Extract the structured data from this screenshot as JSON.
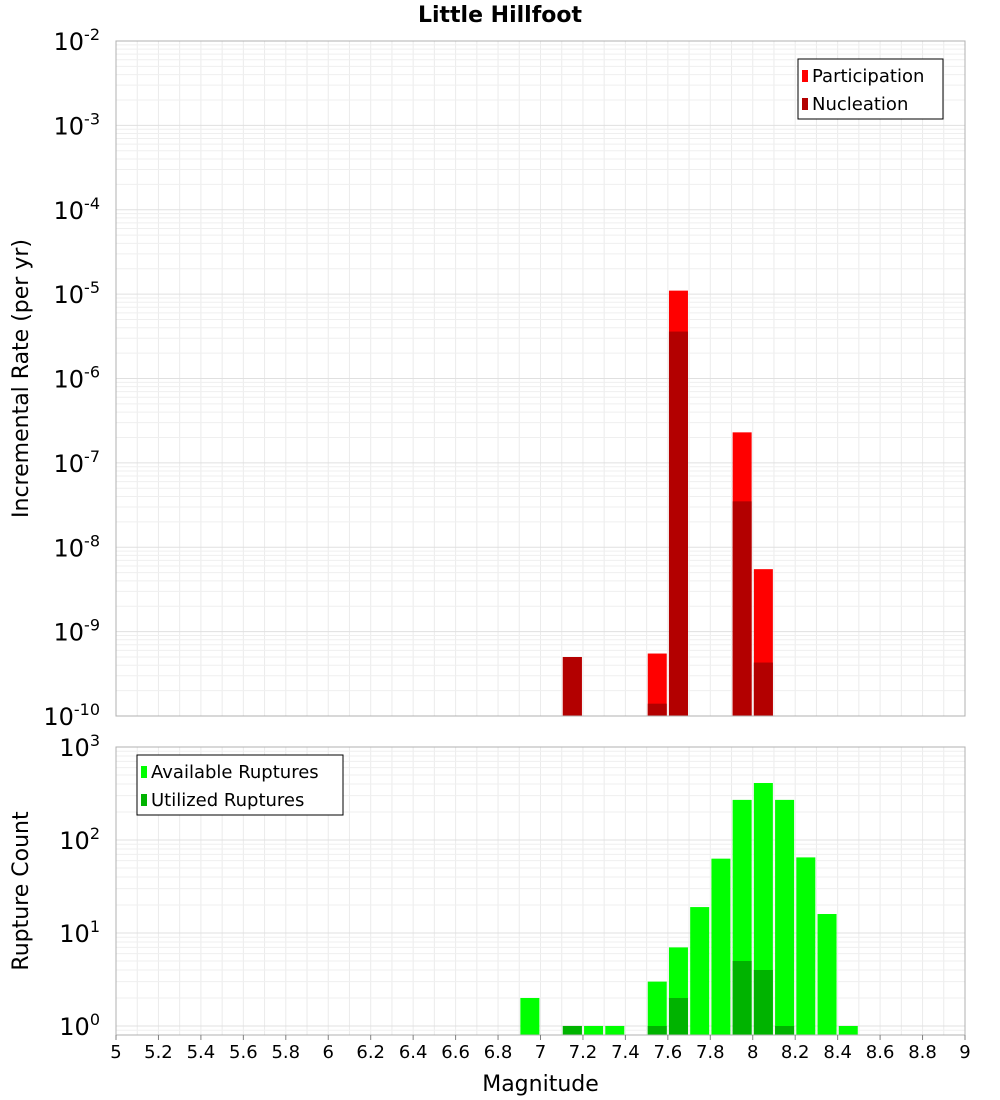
{
  "title": "Little Hillfoot",
  "chart_data": [
    {
      "type": "bar",
      "yscale": "log",
      "ylabel": "Incremental Rate (per yr)",
      "xlim": [
        5,
        9
      ],
      "ylim": [
        1e-10,
        0.01
      ],
      "y_ticks": [
        {
          "base": "10",
          "exp": "-10",
          "value": 1e-10
        },
        {
          "base": "10",
          "exp": "-9",
          "value": 1e-09
        },
        {
          "base": "10",
          "exp": "-8",
          "value": 1e-08
        },
        {
          "base": "10",
          "exp": "-7",
          "value": 1e-07
        },
        {
          "base": "10",
          "exp": "-6",
          "value": 1e-06
        },
        {
          "base": "10",
          "exp": "-5",
          "value": 1e-05
        },
        {
          "base": "10",
          "exp": "-4",
          "value": 0.0001
        },
        {
          "base": "10",
          "exp": "-3",
          "value": 0.001
        },
        {
          "base": "10",
          "exp": "-2",
          "value": 0.01
        }
      ],
      "legend_position": "top-right",
      "grid": true,
      "series": [
        {
          "name": "Participation",
          "color": "#ff0000",
          "points": [
            {
              "x": 7.15,
              "y": 5e-10
            },
            {
              "x": 7.55,
              "y": 5.5e-10
            },
            {
              "x": 7.65,
              "y": 1.1e-05
            },
            {
              "x": 7.95,
              "y": 2.3e-07
            },
            {
              "x": 8.05,
              "y": 5.5e-09
            }
          ]
        },
        {
          "name": "Nucleation",
          "color": "#b30000",
          "points": [
            {
              "x": 7.15,
              "y": 5e-10
            },
            {
              "x": 7.55,
              "y": 1.4e-10
            },
            {
              "x": 7.65,
              "y": 3.6e-06
            },
            {
              "x": 7.95,
              "y": 3.5e-08
            },
            {
              "x": 8.05,
              "y": 4.3e-10
            }
          ]
        }
      ]
    },
    {
      "type": "bar",
      "yscale": "log",
      "ylabel": "Rupture Count",
      "xlabel": "Magnitude",
      "xlim": [
        5,
        9
      ],
      "ylim": [
        0.8,
        1000
      ],
      "y_ticks": [
        {
          "base": "10",
          "exp": "0",
          "value": 1
        },
        {
          "base": "10",
          "exp": "1",
          "value": 10
        },
        {
          "base": "10",
          "exp": "2",
          "value": 100
        },
        {
          "base": "10",
          "exp": "3",
          "value": 1000
        }
      ],
      "x_ticks": [
        "5",
        "5.2",
        "5.4",
        "5.6",
        "5.8",
        "6",
        "6.2",
        "6.4",
        "6.6",
        "6.8",
        "7",
        "7.2",
        "7.4",
        "7.6",
        "7.8",
        "8",
        "8.2",
        "8.4",
        "8.6",
        "8.8",
        "9"
      ],
      "legend_position": "top-left",
      "grid": true,
      "series": [
        {
          "name": "Available Ruptures",
          "color": "#00ff00",
          "points": [
            {
              "x": 6.95,
              "y": 2
            },
            {
              "x": 7.15,
              "y": 1
            },
            {
              "x": 7.25,
              "y": 1
            },
            {
              "x": 7.35,
              "y": 1
            },
            {
              "x": 7.55,
              "y": 3
            },
            {
              "x": 7.65,
              "y": 7
            },
            {
              "x": 7.75,
              "y": 19
            },
            {
              "x": 7.85,
              "y": 63
            },
            {
              "x": 7.95,
              "y": 270
            },
            {
              "x": 8.05,
              "y": 410
            },
            {
              "x": 8.15,
              "y": 270
            },
            {
              "x": 8.25,
              "y": 65
            },
            {
              "x": 8.35,
              "y": 16
            },
            {
              "x": 8.45,
              "y": 1
            }
          ]
        },
        {
          "name": "Utilized Ruptures",
          "color": "#00b300",
          "points": [
            {
              "x": 7.15,
              "y": 1
            },
            {
              "x": 7.55,
              "y": 1
            },
            {
              "x": 7.65,
              "y": 2
            },
            {
              "x": 7.95,
              "y": 5
            },
            {
              "x": 8.05,
              "y": 4
            },
            {
              "x": 8.15,
              "y": 1
            }
          ]
        }
      ]
    }
  ]
}
